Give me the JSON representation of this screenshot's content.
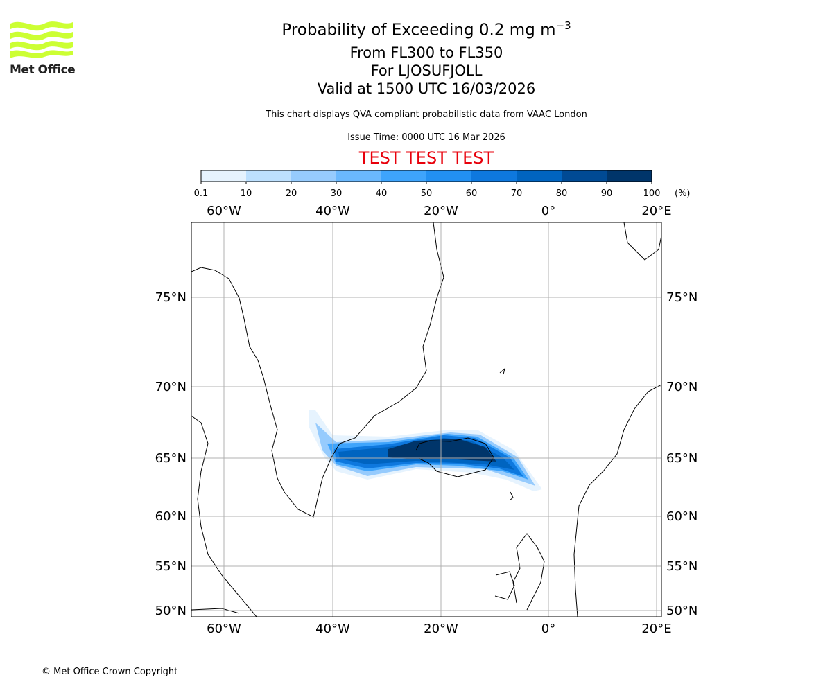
{
  "logo": {
    "text": "Met Office",
    "color": "#ccff33"
  },
  "title": {
    "line1": "Probability of Exceeding 0.2 mg m",
    "line1_sup": "−3",
    "line2": "From FL300 to FL350",
    "line3": "For LJOSUFJOLL",
    "line4": "Valid at 1500 UTC 16/03/2026"
  },
  "subtitle": "This chart displays QVA compliant probabilistic data from VAAC London",
  "issue_time": "Issue Time: 0000 UTC 16 Mar 2026",
  "test_banner": "TEST TEST TEST",
  "test_color": "#e8000b",
  "colorbar": {
    "ticks": [
      "0.1",
      "10",
      "20",
      "30",
      "40",
      "50",
      "60",
      "70",
      "80",
      "90",
      "100"
    ],
    "unit": "(%)",
    "colors": [
      "#e6f3fe",
      "#bde0fe",
      "#96cbfd",
      "#6ab8fd",
      "#3ea4fc",
      "#2290f2",
      "#0e78de",
      "#0064c0",
      "#004a94",
      "#00356a"
    ]
  },
  "map": {
    "lon_labels": [
      "60°W",
      "40°W",
      "20°W",
      "0°",
      "20°E"
    ],
    "lat_labels": [
      "75°N",
      "70°N",
      "65°N",
      "60°N",
      "55°N",
      "50°N"
    ]
  },
  "chart_data": {
    "type": "heatmap",
    "title": "Probability of Exceeding 0.2 mg m−3",
    "levels": [
      0.1,
      10,
      20,
      30,
      40,
      50,
      60,
      70,
      80,
      90,
      100
    ],
    "unit": "%",
    "lon_range": [
      -65,
      22
    ],
    "lat_range": [
      49.5,
      80
    ],
    "grid": true
  },
  "copyright": "© Met Office Crown Copyright"
}
